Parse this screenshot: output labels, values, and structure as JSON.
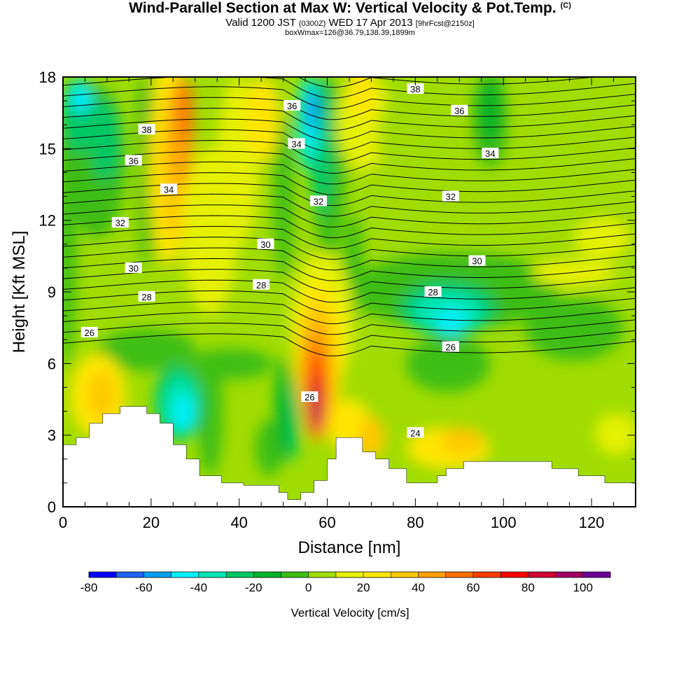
{
  "title": {
    "main": "Wind-Parallel Section at Max W: Vertical Velocity & Pot.Temp.",
    "copyright": "(C)",
    "valid_prefix": "Valid 1200 JST",
    "valid_utc": "(0300Z)",
    "valid_date": "WED 17 Apr 2013",
    "forecast": "[9hrFcst@2150z]",
    "box": "boxWmax=126@36.79,138.39,1899m"
  },
  "chart_data": {
    "type": "heatmap",
    "xlabel": "Distance [nm]",
    "ylabel": "Height [Kft MSL]",
    "xlim": [
      0,
      130
    ],
    "ylim": [
      0,
      18
    ],
    "x_ticks": [
      "0",
      "20",
      "40",
      "60",
      "80",
      "100",
      "120"
    ],
    "y_ticks": [
      "0",
      "3",
      "6",
      "9",
      "12",
      "15",
      "18"
    ],
    "colorbar": {
      "label": "Vertical Velocity [cm/s]",
      "ticks": [
        "-80",
        "-60",
        "-40",
        "-20",
        "0",
        "20",
        "40",
        "60",
        "80",
        "100"
      ],
      "levels": [
        -80,
        -70,
        -60,
        -50,
        -40,
        -30,
        -20,
        -10,
        0,
        10,
        20,
        30,
        40,
        50,
        60,
        70,
        80,
        90,
        100,
        110
      ],
      "colors": [
        "#0000ff",
        "#1e64f5",
        "#00a0f0",
        "#00f0ff",
        "#00e6b4",
        "#00c864",
        "#00b428",
        "#3cbe14",
        "#a0dc00",
        "#e6f000",
        "#ffe600",
        "#ffc800",
        "#ffa000",
        "#ff6e00",
        "#ff3c00",
        "#ff0000",
        "#d20032",
        "#a00064",
        "#6e0096"
      ]
    },
    "potential_temperature_contours": [
      {
        "value": "24",
        "label_pos": [
          80,
          3.1
        ]
      },
      {
        "value": "26",
        "label_pos": [
          6,
          7.3
        ]
      },
      {
        "value": "26",
        "label_pos": [
          56,
          4.6
        ]
      },
      {
        "value": "26",
        "label_pos": [
          88,
          6.7
        ]
      },
      {
        "value": "28",
        "label_pos": [
          19,
          8.8
        ]
      },
      {
        "value": "28",
        "label_pos": [
          45,
          9.3
        ]
      },
      {
        "value": "28",
        "label_pos": [
          84,
          9.0
        ]
      },
      {
        "value": "30",
        "label_pos": [
          16,
          10.0
        ]
      },
      {
        "value": "30",
        "label_pos": [
          46,
          11.0
        ]
      },
      {
        "value": "30",
        "label_pos": [
          94,
          10.3
        ]
      },
      {
        "value": "32",
        "label_pos": [
          13,
          11.9
        ]
      },
      {
        "value": "32",
        "label_pos": [
          58,
          12.8
        ]
      },
      {
        "value": "32",
        "label_pos": [
          88,
          13.0
        ]
      },
      {
        "value": "34",
        "label_pos": [
          24,
          13.3
        ]
      },
      {
        "value": "34",
        "label_pos": [
          53,
          15.2
        ]
      },
      {
        "value": "34",
        "label_pos": [
          97,
          14.8
        ]
      },
      {
        "value": "36",
        "label_pos": [
          16,
          14.5
        ]
      },
      {
        "value": "36",
        "label_pos": [
          52,
          16.8
        ]
      },
      {
        "value": "36",
        "label_pos": [
          90,
          16.6
        ]
      },
      {
        "value": "38",
        "label_pos": [
          19,
          15.8
        ]
      },
      {
        "value": "38",
        "label_pos": [
          80,
          17.5
        ]
      }
    ],
    "terrain_profile_kft": [
      [
        0,
        2.6
      ],
      [
        3,
        2.6
      ],
      [
        3,
        2.9
      ],
      [
        6,
        2.9
      ],
      [
        6,
        3.5
      ],
      [
        9,
        3.5
      ],
      [
        9,
        3.9
      ],
      [
        13,
        3.9
      ],
      [
        13,
        4.2
      ],
      [
        19,
        4.2
      ],
      [
        19,
        3.9
      ],
      [
        22,
        3.9
      ],
      [
        22,
        3.5
      ],
      [
        25,
        3.5
      ],
      [
        25,
        2.6
      ],
      [
        28,
        2.6
      ],
      [
        28,
        2.0
      ],
      [
        31,
        2.0
      ],
      [
        31,
        1.3
      ],
      [
        36,
        1.3
      ],
      [
        36,
        1.0
      ],
      [
        41,
        1.0
      ],
      [
        41,
        0.9
      ],
      [
        49,
        0.9
      ],
      [
        49,
        0.6
      ],
      [
        51,
        0.6
      ],
      [
        51,
        0.3
      ],
      [
        54,
        0.3
      ],
      [
        54,
        0.6
      ],
      [
        57,
        0.6
      ],
      [
        57,
        1.1
      ],
      [
        60,
        1.1
      ],
      [
        60,
        2.0
      ],
      [
        62,
        2.0
      ],
      [
        62,
        2.9
      ],
      [
        68,
        2.9
      ],
      [
        68,
        2.3
      ],
      [
        71,
        2.3
      ],
      [
        71,
        2.0
      ],
      [
        74,
        2.0
      ],
      [
        74,
        1.6
      ],
      [
        78,
        1.6
      ],
      [
        78,
        1.0
      ],
      [
        85,
        1.0
      ],
      [
        85,
        1.3
      ],
      [
        87,
        1.3
      ],
      [
        87,
        1.6
      ],
      [
        91,
        1.6
      ],
      [
        91,
        1.9
      ],
      [
        111,
        1.9
      ],
      [
        111,
        1.6
      ],
      [
        117,
        1.6
      ],
      [
        117,
        1.3
      ],
      [
        123,
        1.3
      ],
      [
        123,
        1.0
      ],
      [
        130,
        1.0
      ]
    ]
  }
}
